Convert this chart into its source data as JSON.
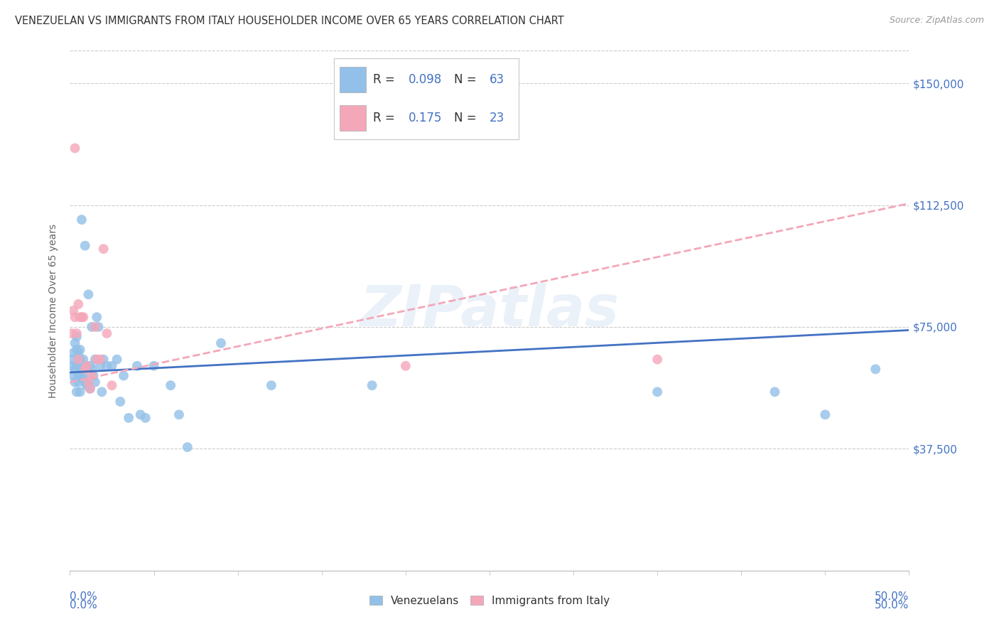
{
  "title": "VENEZUELAN VS IMMIGRANTS FROM ITALY HOUSEHOLDER INCOME OVER 65 YEARS CORRELATION CHART",
  "source": "Source: ZipAtlas.com",
  "ylabel": "Householder Income Over 65 years",
  "yticks": [
    0,
    37500,
    75000,
    112500,
    150000
  ],
  "ytick_labels": [
    "",
    "$37,500",
    "$75,000",
    "$112,500",
    "$150,000"
  ],
  "xlim": [
    0.0,
    0.5
  ],
  "ylim": [
    0,
    160000
  ],
  "color_venezuelan": "#92C0E8",
  "color_italy": "#F4A7B9",
  "color_blue_text": "#4472C4",
  "color_italy_line": "#F4A7B9",
  "watermark_text": "ZIPatlas",
  "venezuelan_x": [
    0.001,
    0.001,
    0.002,
    0.002,
    0.003,
    0.003,
    0.003,
    0.004,
    0.004,
    0.004,
    0.004,
    0.005,
    0.005,
    0.005,
    0.005,
    0.005,
    0.006,
    0.006,
    0.006,
    0.006,
    0.007,
    0.007,
    0.008,
    0.008,
    0.008,
    0.009,
    0.009,
    0.01,
    0.01,
    0.011,
    0.011,
    0.012,
    0.012,
    0.013,
    0.013,
    0.014,
    0.015,
    0.015,
    0.016,
    0.017,
    0.018,
    0.019,
    0.02,
    0.022,
    0.025,
    0.028,
    0.03,
    0.032,
    0.035,
    0.04,
    0.042,
    0.045,
    0.05,
    0.06,
    0.065,
    0.07,
    0.09,
    0.12,
    0.18,
    0.35,
    0.42,
    0.45,
    0.48
  ],
  "venezuelan_y": [
    63000,
    65000,
    60000,
    67000,
    58000,
    70000,
    62000,
    55000,
    63000,
    68000,
    72000,
    60000,
    58000,
    65000,
    63000,
    67000,
    55000,
    60000,
    65000,
    68000,
    108000,
    62000,
    60000,
    65000,
    59000,
    100000,
    58000,
    63000,
    57000,
    85000,
    57000,
    63000,
    56000,
    75000,
    62000,
    60000,
    65000,
    58000,
    78000,
    75000,
    63000,
    55000,
    65000,
    63000,
    63000,
    65000,
    52000,
    60000,
    47000,
    63000,
    48000,
    47000,
    63000,
    57000,
    48000,
    38000,
    70000,
    57000,
    57000,
    55000,
    55000,
    48000,
    62000
  ],
  "italy_x": [
    0.001,
    0.002,
    0.003,
    0.003,
    0.004,
    0.005,
    0.005,
    0.006,
    0.007,
    0.008,
    0.009,
    0.01,
    0.011,
    0.012,
    0.013,
    0.015,
    0.016,
    0.018,
    0.02,
    0.022,
    0.025,
    0.2,
    0.35
  ],
  "italy_y": [
    73000,
    80000,
    130000,
    78000,
    73000,
    82000,
    65000,
    78000,
    78000,
    78000,
    62000,
    63000,
    58000,
    56000,
    60000,
    75000,
    65000,
    65000,
    99000,
    73000,
    57000,
    63000,
    65000
  ]
}
